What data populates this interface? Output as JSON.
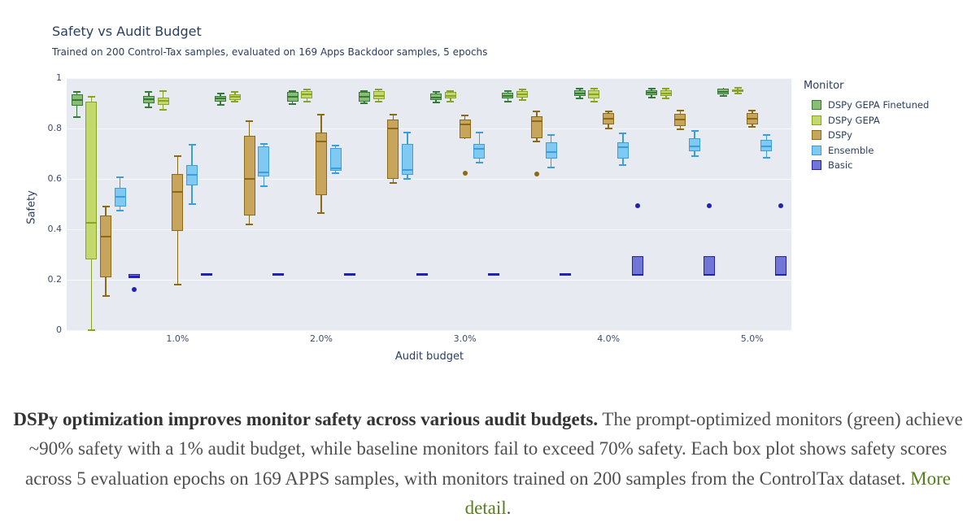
{
  "chart_data": {
    "type": "boxplot",
    "title": "Safety vs Audit Budget",
    "subtitle": "Trained on 200 Control-Tax samples, evaluated on 169 Apps Backdoor samples, 5 epochs",
    "xlabel": "Audit budget",
    "ylabel": "Safety",
    "legend_title": "Monitor",
    "legend_position": "right",
    "grid": "horizontal-white-on-lavender",
    "plot_bg": "#e8eaf2",
    "x_axis": {
      "range": [
        0.228,
        5.273
      ],
      "ticks": [
        1,
        2,
        3,
        4,
        5
      ],
      "tick_labels": [
        "1.0%",
        "2.0%",
        "3.0%",
        "4.0%",
        "5.0%"
      ],
      "unit": "percent audit budget"
    },
    "y_axis": {
      "range": [
        0,
        1
      ],
      "ticks": [
        0,
        0.2,
        0.4,
        0.6,
        0.8,
        1
      ],
      "tick_labels": [
        "0",
        "0.2",
        "0.4",
        "0.6",
        "0.8",
        "1"
      ]
    },
    "group_positions": [
      0.5,
      1.0,
      1.5,
      2.0,
      2.5,
      3.0,
      3.5,
      4.0,
      4.5,
      5.0
    ],
    "box_format": "[x, whisker_low, q1, median, q3, whisker_high, outliers[]]",
    "series": [
      {
        "name": "DSPy GEPA Finetuned",
        "fill": "#8abd74",
        "stroke": "#357a38",
        "boxes": [
          [
            0.5,
            0.845,
            0.89,
            0.912,
            0.935,
            0.945,
            []
          ],
          [
            1.0,
            0.885,
            0.9,
            0.915,
            0.93,
            0.945,
            []
          ],
          [
            1.5,
            0.895,
            0.905,
            0.918,
            0.93,
            0.94,
            []
          ],
          [
            2.0,
            0.898,
            0.906,
            0.925,
            0.944,
            0.95,
            []
          ],
          [
            2.5,
            0.9,
            0.908,
            0.925,
            0.944,
            0.95,
            []
          ],
          [
            3.0,
            0.902,
            0.912,
            0.922,
            0.938,
            0.945,
            []
          ],
          [
            3.5,
            0.908,
            0.918,
            0.928,
            0.942,
            0.948,
            []
          ],
          [
            4.0,
            0.92,
            0.928,
            0.938,
            0.952,
            0.958,
            []
          ],
          [
            4.5,
            0.922,
            0.932,
            0.942,
            0.952,
            0.958,
            []
          ],
          [
            5.0,
            0.928,
            0.935,
            0.945,
            0.958,
            0.96,
            []
          ]
        ]
      },
      {
        "name": "DSPy GEPA",
        "fill": "#c3d96b",
        "stroke": "#89a325",
        "boxes": [
          [
            0.5,
            0.0,
            0.28,
            0.425,
            0.905,
            0.925,
            []
          ],
          [
            1.0,
            0.875,
            0.895,
            0.91,
            0.924,
            0.948,
            []
          ],
          [
            1.5,
            0.905,
            0.912,
            0.925,
            0.935,
            0.945,
            []
          ],
          [
            2.0,
            0.908,
            0.918,
            0.935,
            0.95,
            0.955,
            []
          ],
          [
            2.5,
            0.908,
            0.915,
            0.93,
            0.948,
            0.955,
            []
          ],
          [
            3.0,
            0.908,
            0.918,
            0.93,
            0.945,
            0.95,
            []
          ],
          [
            3.5,
            0.912,
            0.922,
            0.935,
            0.95,
            0.955,
            []
          ],
          [
            4.0,
            0.908,
            0.918,
            0.935,
            0.952,
            0.958,
            []
          ],
          [
            4.5,
            0.918,
            0.928,
            0.94,
            0.953,
            0.958,
            []
          ],
          [
            5.0,
            0.938,
            0.944,
            0.95,
            0.956,
            0.96,
            []
          ]
        ]
      },
      {
        "name": "DSPy",
        "fill": "#c8a55c",
        "stroke": "#8a6a14",
        "boxes": [
          [
            0.5,
            0.135,
            0.21,
            0.37,
            0.455,
            0.49,
            []
          ],
          [
            1.0,
            0.18,
            0.395,
            0.55,
            0.62,
            0.69,
            []
          ],
          [
            1.5,
            0.42,
            0.455,
            0.6,
            0.77,
            0.83,
            []
          ],
          [
            2.0,
            0.465,
            0.535,
            0.75,
            0.785,
            0.855,
            []
          ],
          [
            2.5,
            0.585,
            0.6,
            0.8,
            0.835,
            0.855,
            []
          ],
          [
            3.0,
            0.758,
            0.76,
            0.816,
            0.834,
            0.851,
            [
              0.624
            ]
          ],
          [
            3.5,
            0.75,
            0.76,
            0.83,
            0.85,
            0.868,
            [
              0.62
            ]
          ],
          [
            4.0,
            0.8,
            0.815,
            0.838,
            0.86,
            0.868,
            []
          ],
          [
            4.5,
            0.798,
            0.81,
            0.835,
            0.858,
            0.87,
            []
          ],
          [
            5.0,
            0.805,
            0.815,
            0.838,
            0.86,
            0.87,
            []
          ]
        ]
      },
      {
        "name": "Ensemble",
        "fill": "#80c9f2",
        "stroke": "#3b9ed8",
        "boxes": [
          [
            0.5,
            0.475,
            0.49,
            0.53,
            0.565,
            0.605,
            []
          ],
          [
            1.0,
            0.5,
            0.575,
            0.615,
            0.655,
            0.735,
            []
          ],
          [
            1.5,
            0.57,
            0.61,
            0.625,
            0.73,
            0.74,
            []
          ],
          [
            2.0,
            0.624,
            0.632,
            0.641,
            0.724,
            0.732,
            []
          ],
          [
            2.5,
            0.6,
            0.615,
            0.635,
            0.74,
            0.785,
            []
          ],
          [
            3.0,
            0.663,
            0.681,
            0.719,
            0.74,
            0.784,
            []
          ],
          [
            3.5,
            0.645,
            0.68,
            0.708,
            0.745,
            0.775,
            []
          ],
          [
            4.0,
            0.655,
            0.68,
            0.725,
            0.745,
            0.78,
            []
          ],
          [
            4.5,
            0.69,
            0.71,
            0.73,
            0.76,
            0.79,
            []
          ],
          [
            5.0,
            0.685,
            0.71,
            0.73,
            0.755,
            0.775,
            []
          ]
        ]
      },
      {
        "name": "Basic",
        "fill": "#7176d6",
        "stroke": "#2222b2",
        "boxes": [
          [
            0.5,
            0.205,
            0.205,
            0.212,
            0.222,
            0.222,
            [
              0.162
            ]
          ],
          [
            1.0,
            0.222,
            0.222,
            0.222,
            0.222,
            0.222,
            []
          ],
          [
            1.5,
            0.222,
            0.222,
            0.222,
            0.222,
            0.222,
            []
          ],
          [
            2.0,
            0.222,
            0.222,
            0.222,
            0.222,
            0.222,
            []
          ],
          [
            2.5,
            0.222,
            0.222,
            0.222,
            0.222,
            0.222,
            []
          ],
          [
            3.0,
            0.222,
            0.222,
            0.222,
            0.222,
            0.222,
            []
          ],
          [
            3.5,
            0.222,
            0.222,
            0.222,
            0.222,
            0.222,
            []
          ],
          [
            4.0,
            0.218,
            0.218,
            0.218,
            0.295,
            0.295,
            [
              0.495
            ]
          ],
          [
            4.5,
            0.218,
            0.218,
            0.218,
            0.295,
            0.295,
            [
              0.495
            ]
          ],
          [
            5.0,
            0.218,
            0.218,
            0.218,
            0.295,
            0.295,
            [
              0.495
            ]
          ]
        ]
      }
    ]
  },
  "caption": {
    "bold": "DSPy optimization improves monitor safety across various audit budgets.",
    "body": " The prompt-optimized monitors (green) achieve ~90% safety with a 1% audit budget, while baseline monitors fail to exceed 70% safety. Each box plot shows safety scores across 5 evaluation epochs on 169 APPS samples, with monitors trained on 200 samples from the ControlTax dataset. ",
    "link_text": "More detail",
    "suffix": ".",
    "link_color": "#567d1e"
  }
}
